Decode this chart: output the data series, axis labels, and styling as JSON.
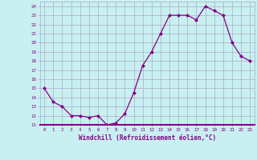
{
  "x": [
    0,
    1,
    2,
    3,
    4,
    5,
    6,
    7,
    8,
    9,
    10,
    11,
    12,
    13,
    14,
    15,
    16,
    17,
    18,
    19,
    20,
    21,
    22,
    23
  ],
  "y": [
    15,
    13.5,
    13,
    12,
    12,
    11.8,
    12,
    11,
    11.2,
    12.2,
    14.5,
    17.5,
    19,
    21,
    23,
    23,
    23,
    22.5,
    24,
    23.5,
    23,
    20,
    18.5,
    18
  ],
  "xlabel": "Windchill (Refroidissement éolien,°C)",
  "xlim": [
    -0.5,
    23.5
  ],
  "ylim": [
    11,
    24.5
  ],
  "yticks": [
    11,
    12,
    13,
    14,
    15,
    16,
    17,
    18,
    19,
    20,
    21,
    22,
    23,
    24
  ],
  "xticks": [
    0,
    1,
    2,
    3,
    4,
    5,
    6,
    7,
    8,
    9,
    10,
    11,
    12,
    13,
    14,
    15,
    16,
    17,
    18,
    19,
    20,
    21,
    22,
    23
  ],
  "line_color": "#880088",
  "marker_color": "#880088",
  "bg_color": "#c8f0f0",
  "grid_color": "#aaaacc",
  "tick_color": "#880088",
  "label_color": "#880088"
}
